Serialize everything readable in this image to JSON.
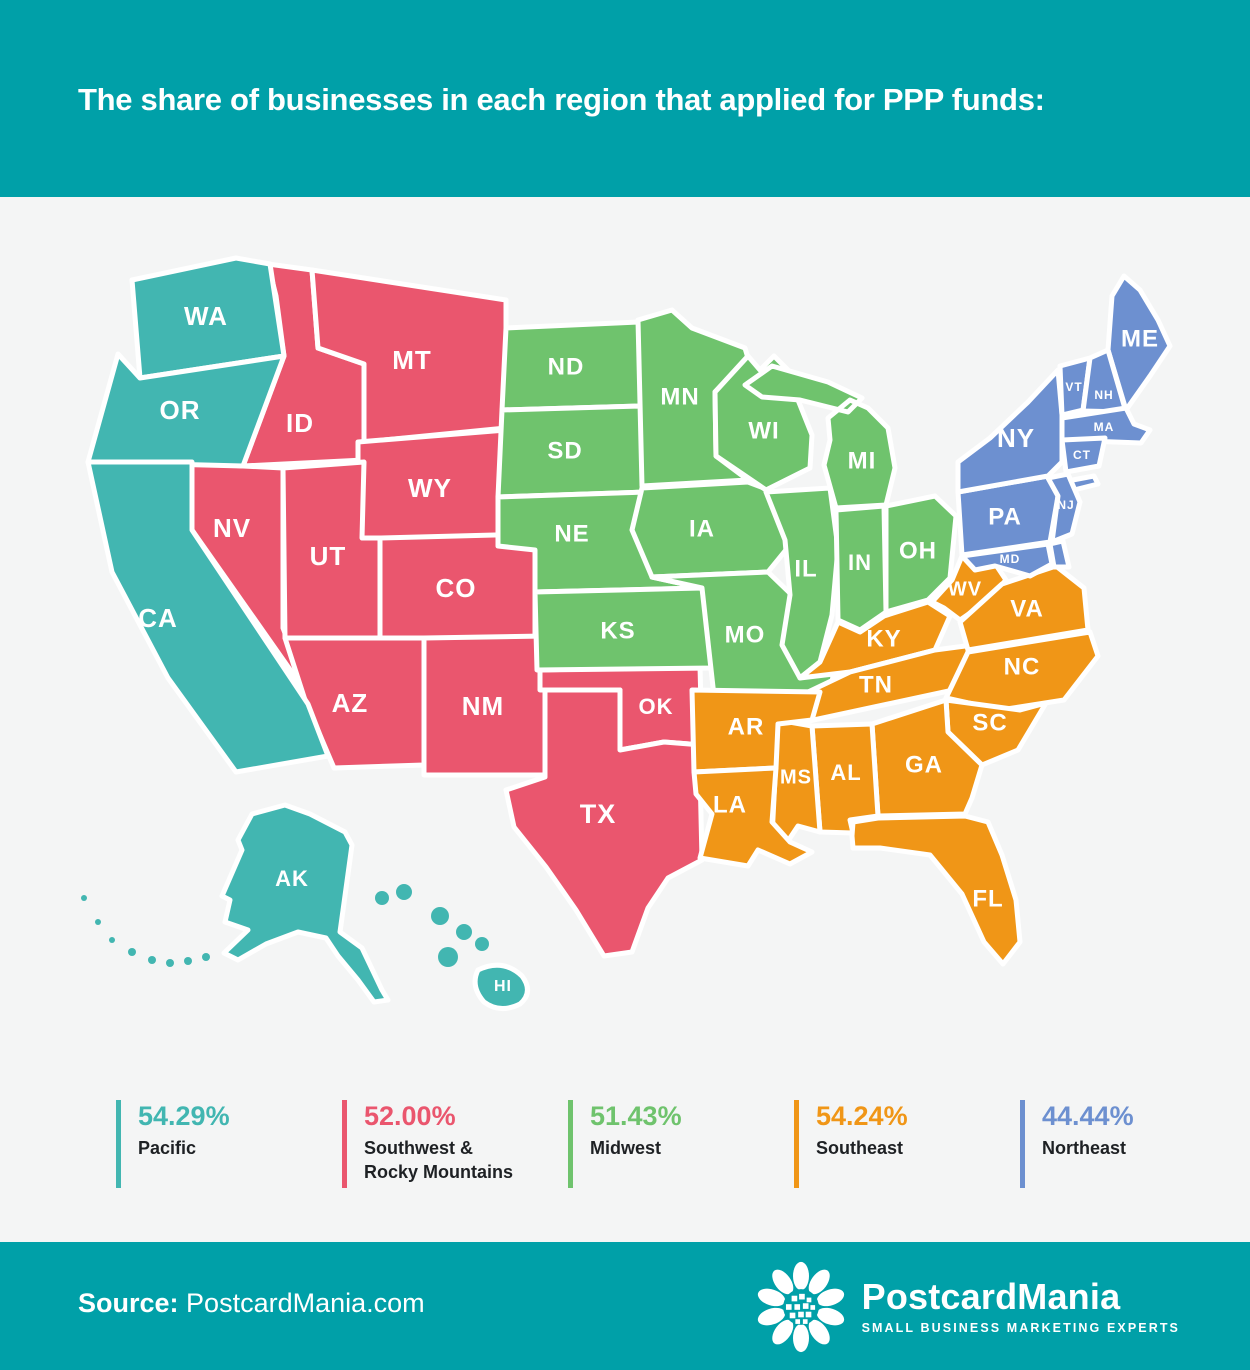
{
  "header": {
    "title": "The share of businesses in each region that applied for PPP funds:",
    "background": "#00A0A8"
  },
  "map": {
    "region_colors": {
      "pacific": "#42B6B1",
      "southwest": "#EA566E",
      "midwest": "#6FC36D",
      "southeast": "#F09617",
      "northeast": "#6D90D0"
    },
    "states": [
      {
        "id": "ID",
        "label": "ID",
        "region": "southwest"
      },
      {
        "id": "MT",
        "label": "MT",
        "region": "southwest"
      },
      {
        "id": "WY",
        "label": "WY",
        "region": "southwest"
      },
      {
        "id": "NV",
        "label": "NV",
        "region": "southwest"
      },
      {
        "id": "UT",
        "label": "UT",
        "region": "southwest"
      },
      {
        "id": "CO",
        "label": "CO",
        "region": "southwest"
      },
      {
        "id": "AZ",
        "label": "AZ",
        "region": "southwest"
      },
      {
        "id": "NM",
        "label": "NM",
        "region": "southwest"
      },
      {
        "id": "OK",
        "label": "OK",
        "region": "southwest"
      },
      {
        "id": "TX",
        "label": "TX",
        "region": "southwest"
      },
      {
        "id": "WA",
        "label": "WA",
        "region": "pacific"
      },
      {
        "id": "OR",
        "label": "OR",
        "region": "pacific"
      },
      {
        "id": "CA",
        "label": "CA",
        "region": "pacific"
      },
      {
        "id": "AK",
        "label": "AK",
        "region": "pacific"
      },
      {
        "id": "HI",
        "label": "HI",
        "region": "pacific"
      },
      {
        "id": "ND",
        "label": "ND",
        "region": "midwest"
      },
      {
        "id": "SD",
        "label": "SD",
        "region": "midwest"
      },
      {
        "id": "NE",
        "label": "NE",
        "region": "midwest"
      },
      {
        "id": "KS",
        "label": "KS",
        "region": "midwest"
      },
      {
        "id": "MN",
        "label": "MN",
        "region": "midwest"
      },
      {
        "id": "IA",
        "label": "IA",
        "region": "midwest"
      },
      {
        "id": "MO",
        "label": "MO",
        "region": "midwest"
      },
      {
        "id": "WI",
        "label": "WI",
        "region": "midwest"
      },
      {
        "id": "IL",
        "label": "IL",
        "region": "midwest"
      },
      {
        "id": "IN",
        "label": "IN",
        "region": "midwest"
      },
      {
        "id": "MI",
        "label": "MI",
        "region": "midwest"
      },
      {
        "id": "OH",
        "label": "OH",
        "region": "midwest"
      },
      {
        "id": "KY",
        "label": "KY",
        "region": "southeast"
      },
      {
        "id": "TN",
        "label": "TN",
        "region": "southeast"
      },
      {
        "id": "WV",
        "label": "WV",
        "region": "southeast"
      },
      {
        "id": "VA",
        "label": "VA",
        "region": "southeast"
      },
      {
        "id": "NC",
        "label": "NC",
        "region": "southeast"
      },
      {
        "id": "SC",
        "label": "SC",
        "region": "southeast"
      },
      {
        "id": "GA",
        "label": "GA",
        "region": "southeast"
      },
      {
        "id": "AL",
        "label": "AL",
        "region": "southeast"
      },
      {
        "id": "MS",
        "label": "MS",
        "region": "southeast"
      },
      {
        "id": "AR",
        "label": "AR",
        "region": "southeast"
      },
      {
        "id": "LA",
        "label": "LA",
        "region": "southeast"
      },
      {
        "id": "FL",
        "label": "FL",
        "region": "southeast"
      },
      {
        "id": "PA",
        "label": "PA",
        "region": "northeast"
      },
      {
        "id": "NY",
        "label": "NY",
        "region": "northeast"
      },
      {
        "id": "NJ",
        "label": "NJ",
        "region": "northeast"
      },
      {
        "id": "MD",
        "label": "MD",
        "region": "northeast"
      },
      {
        "id": "ME",
        "label": "ME",
        "region": "northeast"
      },
      {
        "id": "VT",
        "label": "VT",
        "region": "northeast"
      },
      {
        "id": "NH",
        "label": "NH",
        "region": "northeast"
      },
      {
        "id": "MA",
        "label": "MA",
        "region": "northeast"
      },
      {
        "id": "CT",
        "label": "CT",
        "region": "northeast"
      }
    ]
  },
  "chart_data": {
    "type": "choropleth-map",
    "title": "The share of businesses in each region that applied for PPP funds:",
    "categories": [
      "Pacific",
      "Southwest & Rocky Mountains",
      "Midwest",
      "Southeast",
      "Northeast"
    ],
    "values": [
      54.29,
      52.0,
      51.43,
      54.24,
      44.44
    ],
    "units": "%"
  },
  "legend": {
    "items": [
      {
        "value": "54.29%",
        "label": "Pacific",
        "color": "#42B6B1"
      },
      {
        "value": "52.00%",
        "label": "Southwest &\nRocky Mountains",
        "color": "#EA566E"
      },
      {
        "value": "51.43%",
        "label": "Midwest",
        "color": "#6FC36D"
      },
      {
        "value": "54.24%",
        "label": "Southeast",
        "color": "#F09617"
      },
      {
        "value": "44.44%",
        "label": "Northeast",
        "color": "#6D90D0"
      }
    ]
  },
  "footer": {
    "source_label": "Source:",
    "source_value": "PostcardMania.com",
    "brand": "PostcardMania",
    "tagline": "SMALL BUSINESS MARKETING EXPERTS",
    "background": "#00A0A8"
  }
}
